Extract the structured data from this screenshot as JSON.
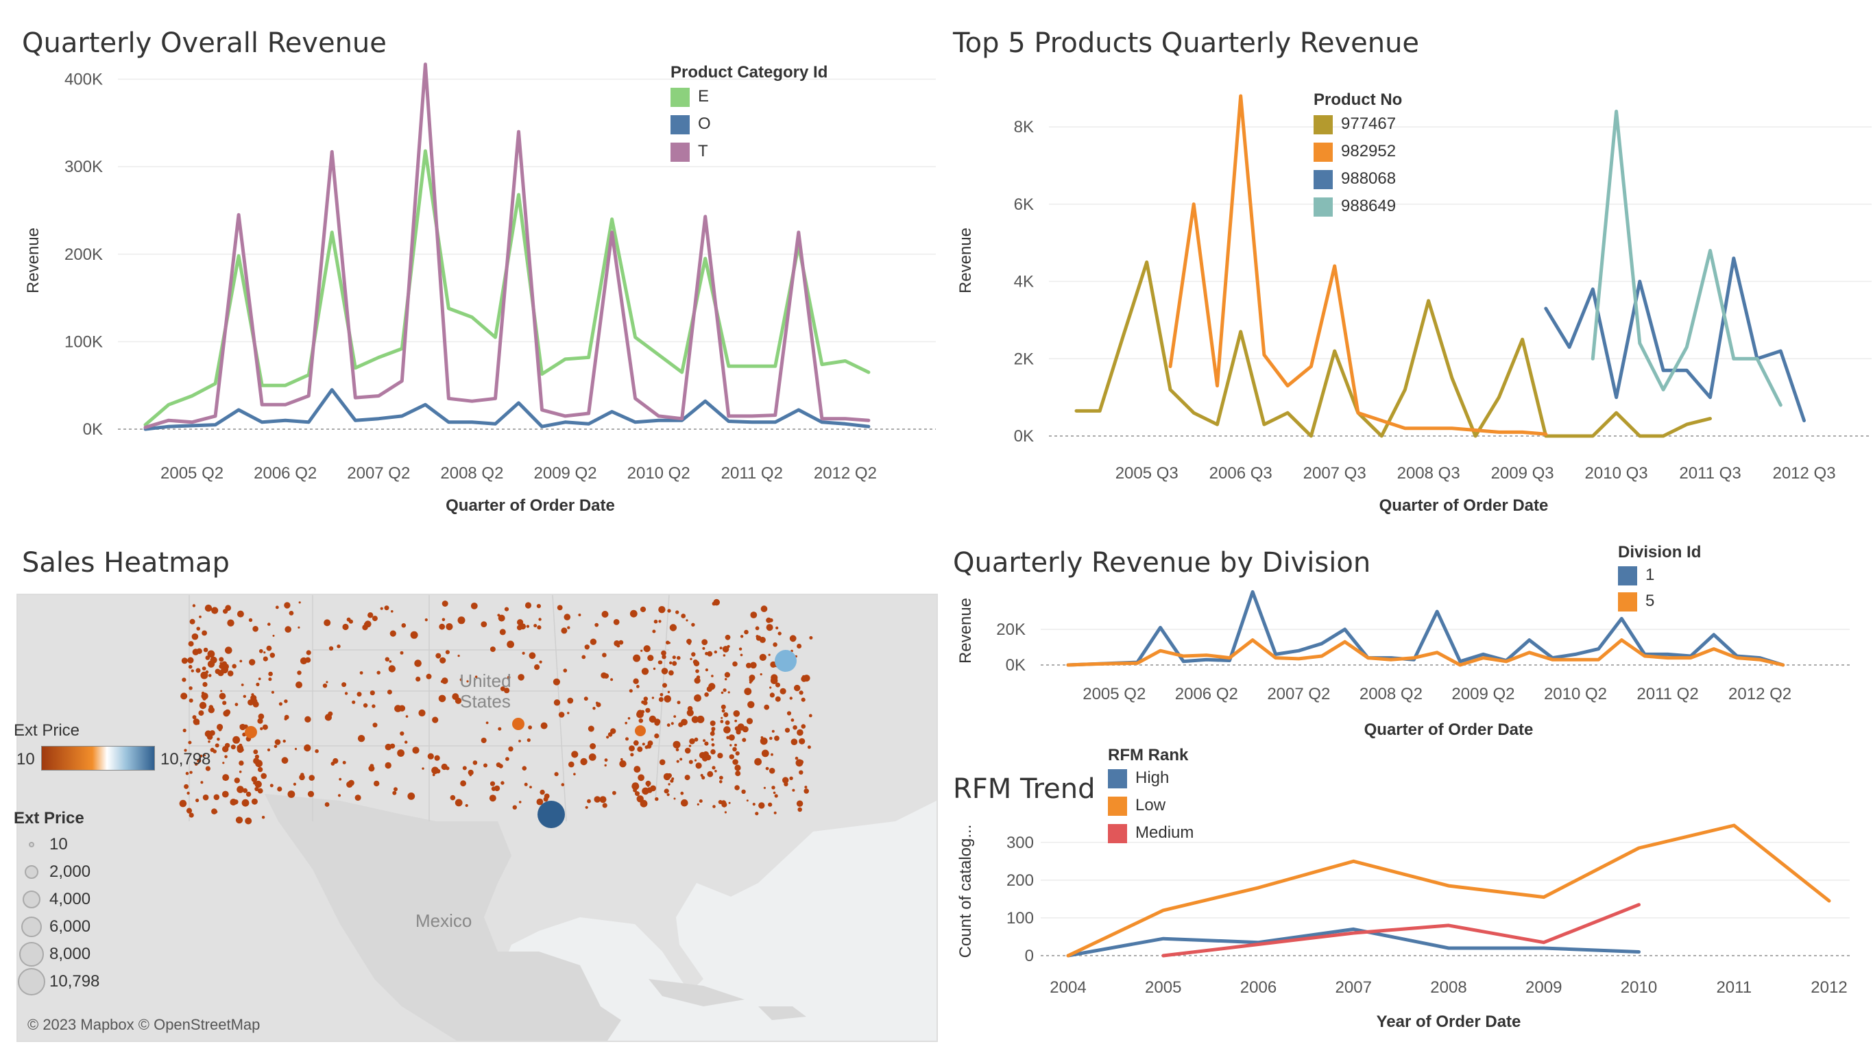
{
  "dashboard": {
    "titles": {
      "overall": "Quarterly Overall Revenue",
      "top5": "Top 5 Products Quarterly Revenue",
      "heatmap": "Sales Heatmap",
      "division": "Quarterly Revenue by Division",
      "rfm": "RFM Trend"
    }
  },
  "chart_data": [
    {
      "id": "overall",
      "type": "line",
      "title": "Quarterly Overall Revenue",
      "xlabel": "Quarter of Order Date",
      "ylabel": "Revenue",
      "ylim": [
        0,
        420000
      ],
      "yticks": [
        "0K",
        "100K",
        "200K",
        "300K",
        "400K"
      ],
      "ytick_values": [
        0,
        100000,
        200000,
        300000,
        400000
      ],
      "xticks": [
        "2005 Q2",
        "2006 Q2",
        "2007 Q2",
        "2008 Q2",
        "2009 Q2",
        "2010 Q2",
        "2011 Q2",
        "2012 Q2"
      ],
      "xtick_index": [
        2,
        6,
        10,
        14,
        18,
        22,
        26,
        30
      ],
      "n_points": 34,
      "legend": {
        "title": "Product Category Id",
        "position": "top-right"
      },
      "series": [
        {
          "name": "E",
          "color": "#8CD17D",
          "values": [
            5000,
            28000,
            38000,
            52000,
            198000,
            50000,
            50000,
            62000,
            225000,
            70000,
            82000,
            92000,
            318000,
            138000,
            128000,
            105000,
            268000,
            63000,
            80000,
            82000,
            240000,
            105000,
            85000,
            65000,
            195000,
            72000,
            72000,
            72000,
            210000,
            74000,
            78000,
            65000
          ]
        },
        {
          "name": "O",
          "color": "#4E79A7",
          "values": [
            0,
            3000,
            4000,
            5000,
            22000,
            8000,
            10000,
            8000,
            45000,
            10000,
            12000,
            15000,
            28000,
            8000,
            8000,
            6000,
            30000,
            3000,
            8000,
            6000,
            20000,
            8000,
            10000,
            10000,
            32000,
            9000,
            8000,
            8000,
            22000,
            8000,
            6000,
            3000
          ]
        },
        {
          "name": "T",
          "color": "#B07AA1",
          "values": [
            2000,
            10000,
            8000,
            15000,
            245000,
            28000,
            28000,
            38000,
            317000,
            36000,
            38000,
            55000,
            417000,
            35000,
            32000,
            35000,
            340000,
            22000,
            15000,
            18000,
            225000,
            35000,
            15000,
            12000,
            243000,
            15000,
            15000,
            16000,
            225000,
            12000,
            12000,
            10000
          ]
        }
      ]
    },
    {
      "id": "top5",
      "type": "line",
      "title": "Top 5 Products Quarterly Revenue",
      "xlabel": "Quarter of Order Date",
      "ylabel": "Revenue",
      "ylim": [
        0,
        8800
      ],
      "yticks": [
        "0K",
        "2K",
        "4K",
        "6K",
        "8K"
      ],
      "ytick_values": [
        0,
        2000,
        4000,
        6000,
        8000
      ],
      "xticks": [
        "2005 Q3",
        "2006 Q3",
        "2007 Q3",
        "2008 Q3",
        "2009 Q3",
        "2010 Q3",
        "2011 Q3",
        "2012 Q3"
      ],
      "xtick_index": [
        3,
        7,
        11,
        15,
        19,
        23,
        27,
        31
      ],
      "n_points": 34,
      "legend": {
        "title": "Product No",
        "position": "top-left"
      },
      "series": [
        {
          "name": "977467",
          "color": "#B49A2E",
          "start": 0,
          "values": [
            650,
            650,
            2600,
            4500,
            1200,
            600,
            300,
            2700,
            300,
            600,
            0,
            2200,
            600,
            0,
            1200,
            3500,
            1500,
            0,
            1000,
            2500,
            0,
            0,
            0,
            600,
            0,
            0,
            300,
            450
          ]
        },
        {
          "name": "982952",
          "color": "#F28E2B",
          "start": 4,
          "values": [
            1800,
            6000,
            1300,
            8800,
            2100,
            1300,
            1800,
            4400,
            600,
            400,
            200,
            200,
            200,
            150,
            100,
            100,
            50
          ]
        },
        {
          "name": "988068",
          "color": "#4E79A7",
          "start": 20,
          "values": [
            3300,
            2300,
            3800,
            1000,
            4000,
            1700,
            1700,
            1000,
            4600,
            2000,
            2200,
            400
          ]
        },
        {
          "name": "988649",
          "color": "#86BCB6",
          "start": 22,
          "values": [
            2000,
            8400,
            2400,
            1200,
            2300,
            4800,
            2000,
            2000,
            800
          ]
        }
      ]
    },
    {
      "id": "division",
      "type": "line",
      "title": "Quarterly Revenue by Division",
      "xlabel": "Quarter of Order Date",
      "ylabel": "Revenue",
      "ylim": [
        0,
        30000
      ],
      "yticks": [
        "0K",
        "20K"
      ],
      "ytick_values": [
        0,
        20000
      ],
      "xticks": [
        "2005 Q2",
        "2006 Q2",
        "2007 Q2",
        "2008 Q2",
        "2009 Q2",
        "2010 Q2",
        "2011 Q2",
        "2012 Q2"
      ],
      "xtick_index": [
        2,
        6,
        10,
        14,
        18,
        22,
        26,
        30
      ],
      "n_points": 34,
      "legend": {
        "title": "Division Id",
        "position": "top-right"
      },
      "series": [
        {
          "name": "1",
          "color": "#4E79A7",
          "values": [
            0,
            500,
            1000,
            1500,
            21000,
            2000,
            3000,
            2500,
            41000,
            6000,
            8000,
            12000,
            20000,
            4000,
            4000,
            3000,
            30000,
            2000,
            6000,
            2500,
            14000,
            4000,
            6000,
            9000,
            26000,
            6000,
            6000,
            5000,
            17000,
            5000,
            4000,
            0
          ]
        },
        {
          "name": "5",
          "color": "#F28E2B",
          "values": [
            0,
            500,
            800,
            1000,
            8000,
            5000,
            5500,
            4000,
            14000,
            4000,
            3500,
            5000,
            13000,
            4000,
            3000,
            4000,
            7000,
            0,
            4000,
            2000,
            7000,
            3000,
            3000,
            3000,
            14000,
            5000,
            4000,
            4000,
            9000,
            4000,
            3000,
            0
          ]
        }
      ]
    },
    {
      "id": "rfm",
      "type": "line",
      "title": "RFM Trend",
      "xlabel": "Year of Order Date",
      "ylabel": "Count of catalog...",
      "ylim": [
        0,
        345
      ],
      "yticks": [
        "0",
        "100",
        "200",
        "300"
      ],
      "ytick_values": [
        0,
        100,
        200,
        300
      ],
      "xticks": [
        "2004",
        "2005",
        "2006",
        "2007",
        "2008",
        "2009",
        "2010",
        "2011",
        "2012"
      ],
      "legend": {
        "title": "RFM Rank",
        "position": "top-left"
      },
      "series": [
        {
          "name": "High",
          "color": "#4E79A7",
          "x": [
            2004,
            2005,
            2006,
            2007,
            2008,
            2009,
            2010
          ],
          "values": [
            0,
            45,
            35,
            70,
            20,
            20,
            10
          ]
        },
        {
          "name": "Low",
          "color": "#F28E2B",
          "x": [
            2004,
            2005,
            2006,
            2007,
            2008,
            2009,
            2010,
            2011,
            2012
          ],
          "values": [
            0,
            120,
            180,
            250,
            185,
            155,
            285,
            345,
            145
          ]
        },
        {
          "name": "Medium",
          "color": "#E15759",
          "x": [
            2005,
            2006,
            2007,
            2008,
            2009,
            2010
          ],
          "values": [
            0,
            30,
            60,
            80,
            35,
            135
          ]
        }
      ]
    }
  ],
  "heatmap": {
    "map_labels": {
      "usa": "United States",
      "mexico": "Mexico"
    },
    "color_legend": {
      "title": "Ext Price",
      "min": "10",
      "max": "10,798",
      "low_color": "#B5420F",
      "mid_color": "#F3A76A",
      "high_color": "#2E5E8E"
    },
    "size_legend": {
      "title": "Ext Price",
      "items": [
        "10",
        "2,000",
        "4,000",
        "6,000",
        "8,000",
        "10,798"
      ]
    },
    "attribution": "© 2023 Mapbox © OpenStreetMap",
    "dot_color": "#B5420F"
  }
}
